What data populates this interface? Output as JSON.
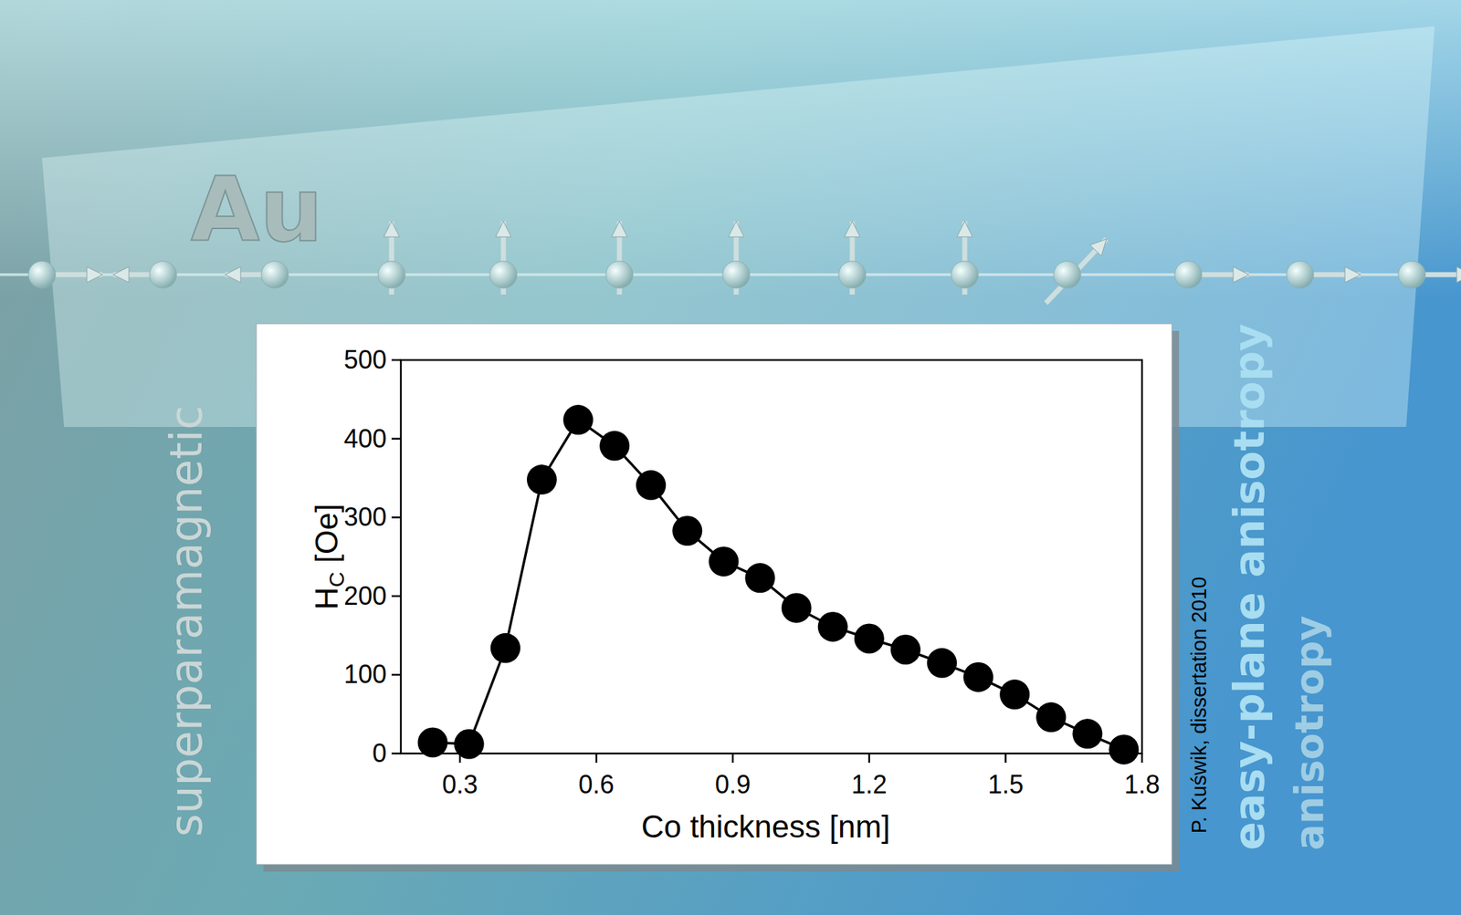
{
  "chart_data": {
    "type": "line",
    "x_label": "Co thickness [nm]",
    "y_label": "HC [Oe]",
    "x": [
      0.24,
      0.32,
      0.4,
      0.48,
      0.56,
      0.64,
      0.72,
      0.8,
      0.88,
      0.96,
      1.04,
      1.12,
      1.2,
      1.28,
      1.36,
      1.44,
      1.52,
      1.6,
      1.68,
      1.76
    ],
    "values": [
      14,
      12,
      134,
      348,
      424,
      391,
      341,
      283,
      244,
      223,
      185,
      161,
      146,
      132,
      115,
      97,
      75,
      46,
      25,
      5
    ],
    "color": "#000000",
    "marker": "circle",
    "line_style": "solid",
    "xlim": [
      0.17,
      1.8
    ],
    "ylim": [
      0,
      500
    ],
    "xticks": [
      0.3,
      0.6,
      0.9,
      1.2,
      1.5,
      1.8
    ],
    "yticks": [
      0,
      100,
      200,
      300,
      400,
      500
    ],
    "annotations": [
      "Au",
      "superparamagnetic",
      "easy-plane anisotropy",
      "anisotropy",
      "P. Kuświk, dissertation 2010"
    ]
  }
}
